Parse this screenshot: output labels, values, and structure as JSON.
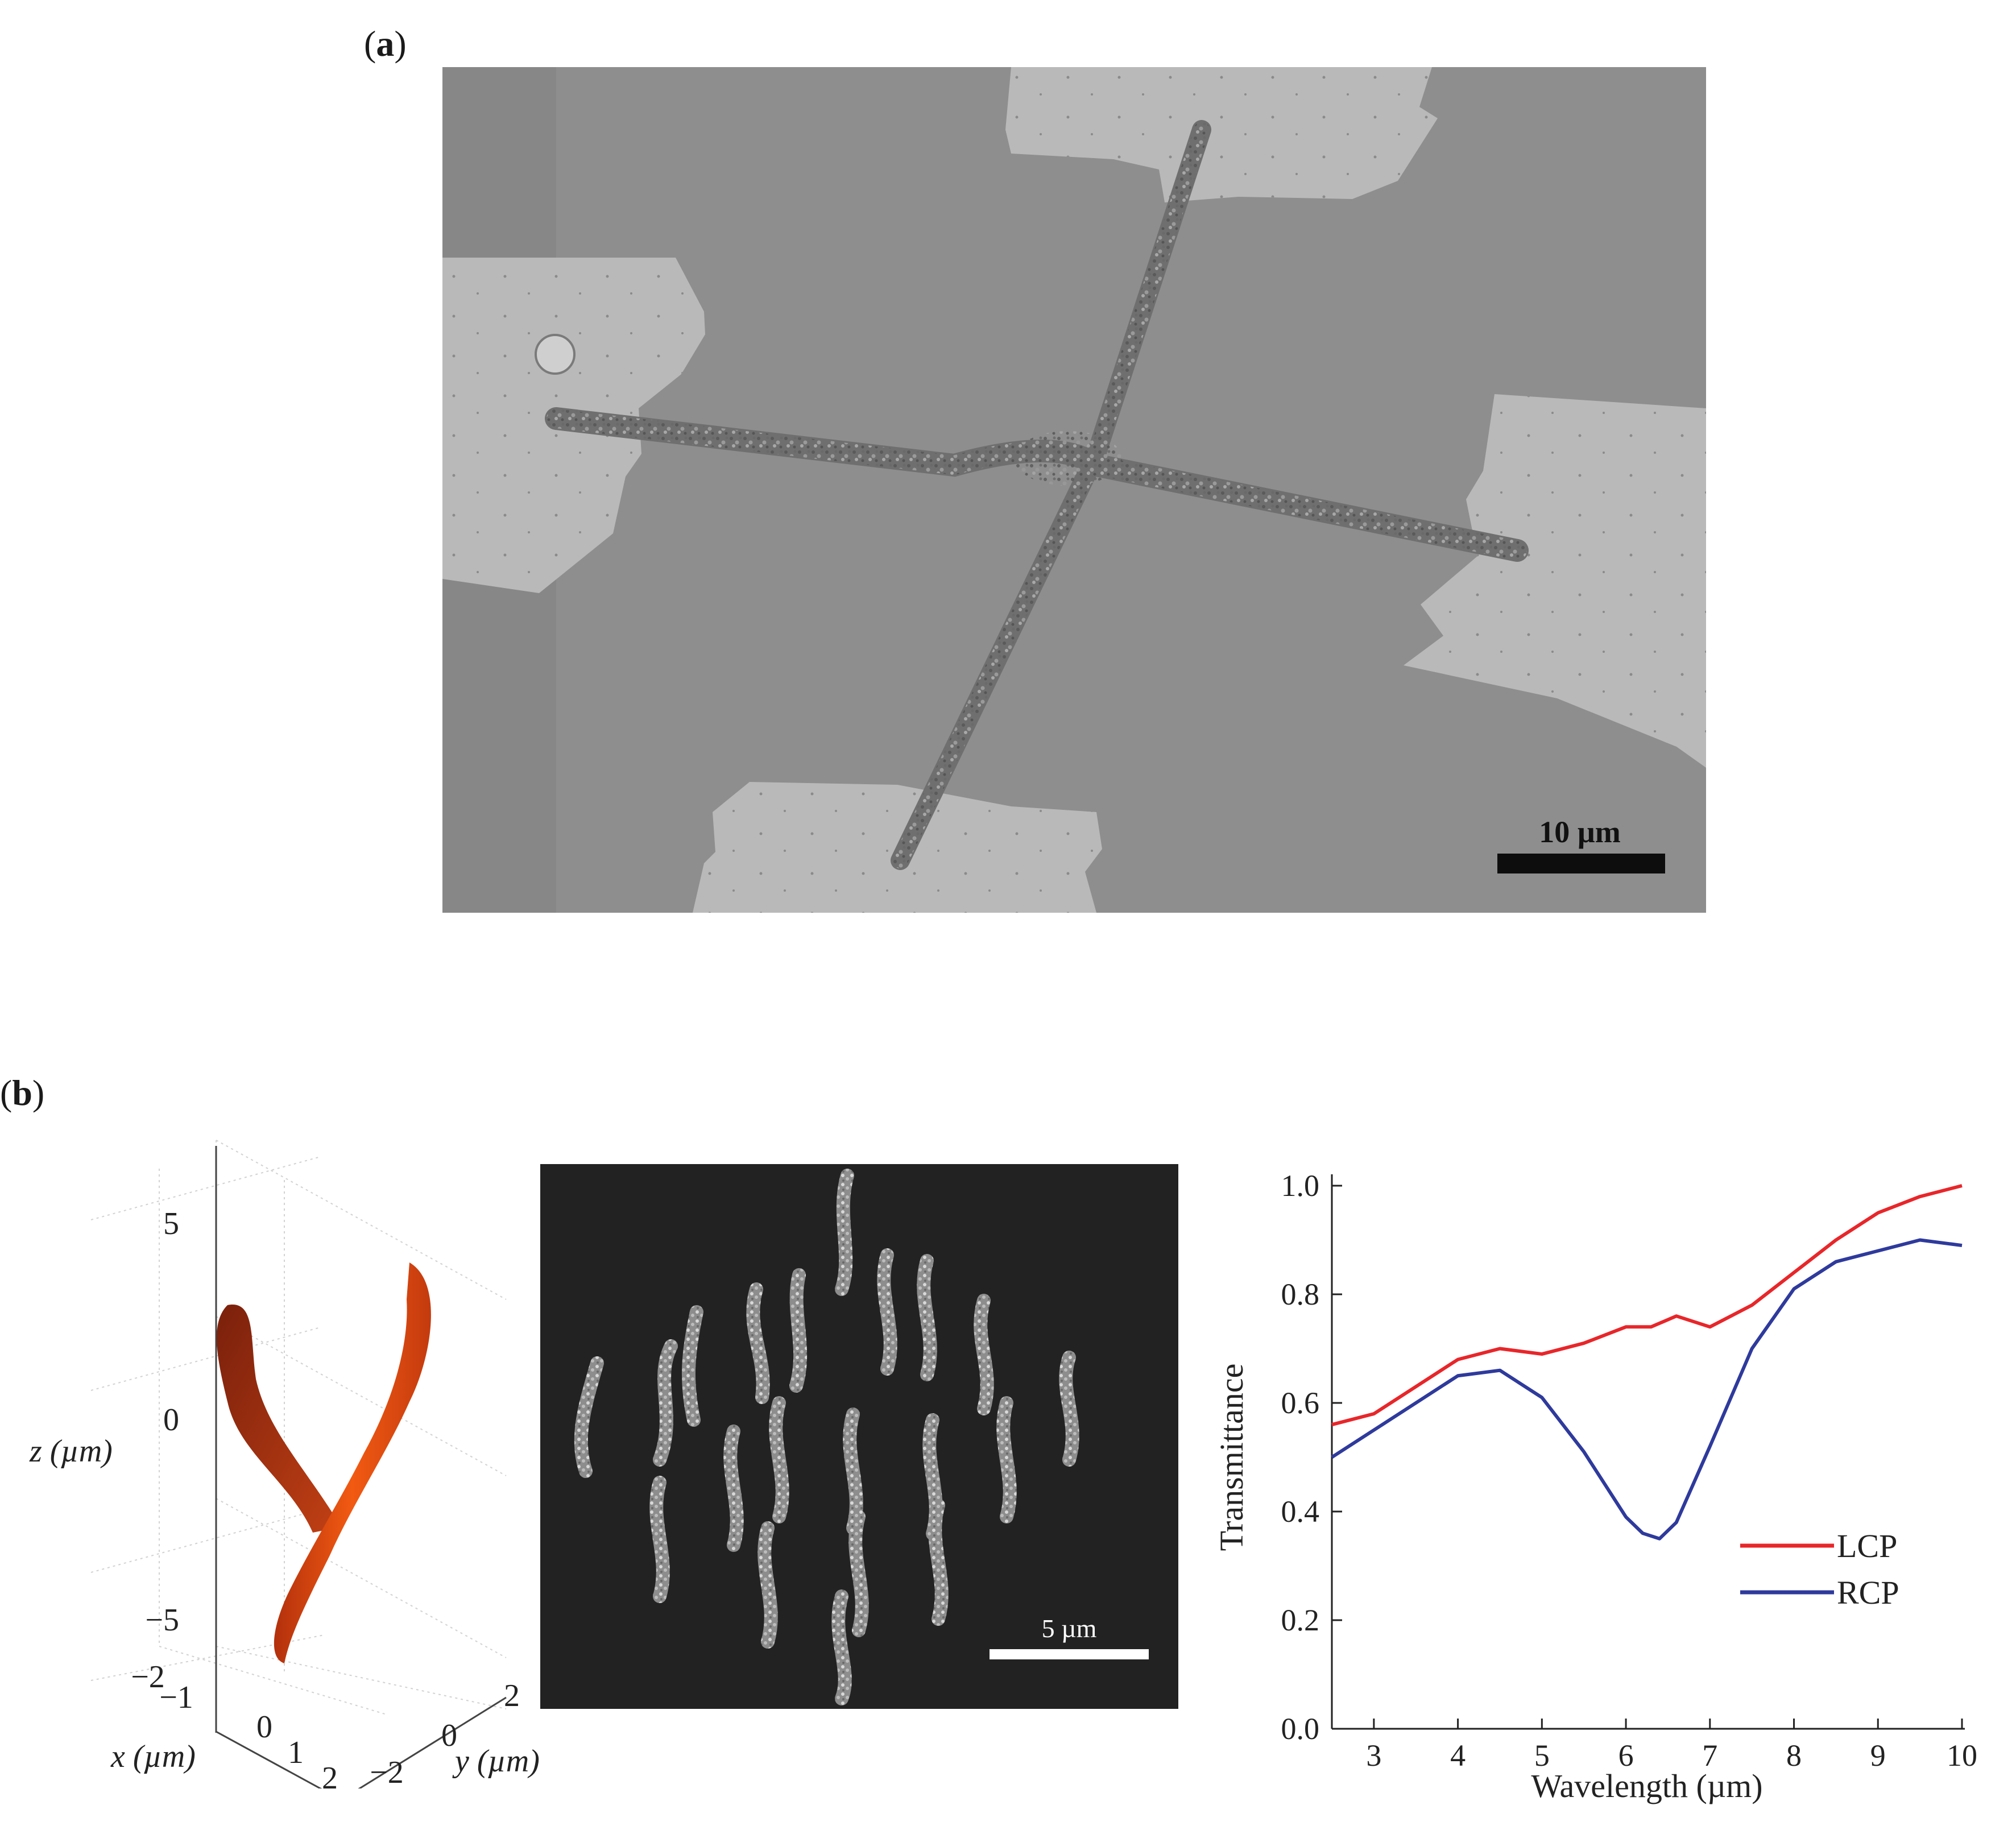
{
  "panel_a": {
    "label_open": "(",
    "label_letter": "a",
    "label_close": ")",
    "scale_bar": "10 µm"
  },
  "panel_b": {
    "label_open": "(",
    "label_letter": "b",
    "label_close": ")",
    "plot3d": {
      "z_ticks": [
        "5",
        "0",
        "−5"
      ],
      "x_ticks": [
        "−2",
        "−1",
        "0",
        "1",
        "2"
      ],
      "y_ticks": [
        "−2",
        "0",
        "2"
      ],
      "z_label": "z (µm)",
      "x_label": "x (µm)",
      "y_label": "y (µm)",
      "fiber_colors": [
        "#8a2a10",
        "#e84a10"
      ]
    },
    "sem_scale_bar": "5 µm"
  },
  "chart_data": {
    "type": "line",
    "xlabel": "Wavelength (µm)",
    "ylabel": "Transmittance",
    "xlim": [
      2.5,
      10
    ],
    "ylim": [
      0.0,
      1.0
    ],
    "x_ticks": [
      "3",
      "4",
      "5",
      "6",
      "7",
      "8",
      "9",
      "10"
    ],
    "y_ticks": [
      "0.0",
      "0.2",
      "0.4",
      "0.6",
      "0.8",
      "1.0"
    ],
    "legend_position": "bottom-right",
    "series": [
      {
        "name": "LCP",
        "color": "#e8262a",
        "x": [
          2.5,
          3.0,
          3.5,
          4.0,
          4.5,
          5.0,
          5.5,
          6.0,
          6.3,
          6.6,
          7.0,
          7.5,
          8.0,
          8.5,
          9.0,
          9.5,
          10.0
        ],
        "y": [
          0.56,
          0.58,
          0.63,
          0.68,
          0.7,
          0.69,
          0.71,
          0.74,
          0.74,
          0.76,
          0.74,
          0.78,
          0.84,
          0.9,
          0.95,
          0.98,
          1.0
        ]
      },
      {
        "name": "RCP",
        "color": "#2e3a9c",
        "x": [
          2.5,
          3.0,
          3.5,
          4.0,
          4.5,
          5.0,
          5.5,
          6.0,
          6.2,
          6.4,
          6.6,
          7.0,
          7.5,
          8.0,
          8.5,
          9.0,
          9.5,
          10.0
        ],
        "y": [
          0.5,
          0.55,
          0.6,
          0.65,
          0.66,
          0.61,
          0.51,
          0.39,
          0.36,
          0.35,
          0.38,
          0.52,
          0.7,
          0.81,
          0.86,
          0.88,
          0.9,
          0.89
        ]
      }
    ]
  }
}
